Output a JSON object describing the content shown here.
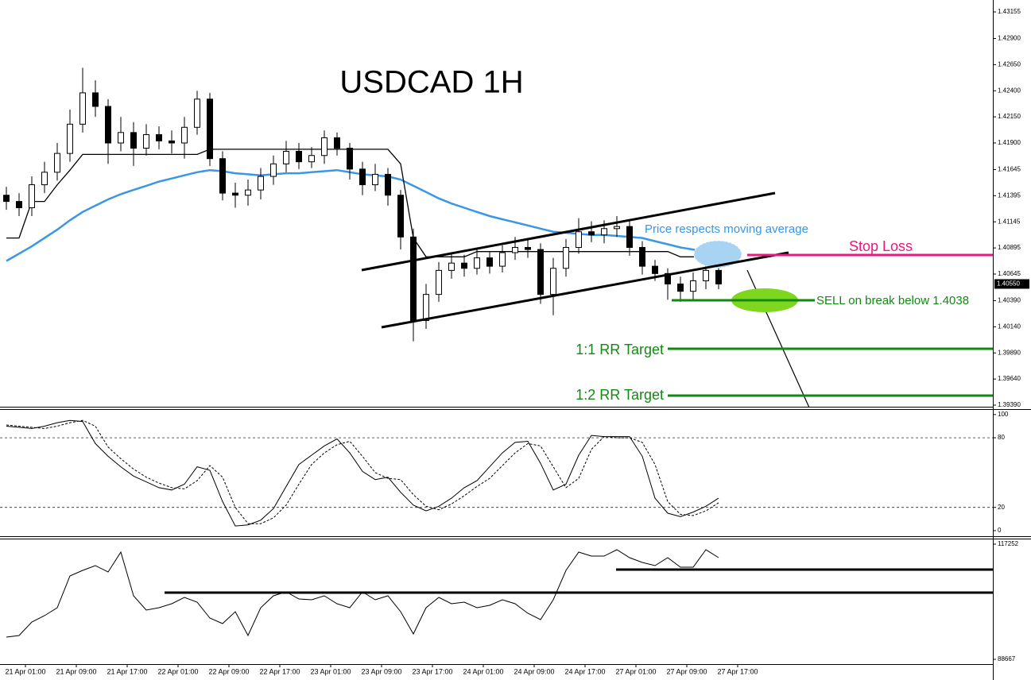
{
  "chart_data": [
    {
      "type": "candlestick",
      "title": "USDCAD 1H",
      "x_labels": [
        "21 Apr 01:00",
        "21 Apr 09:00",
        "21 Apr 17:00",
        "22 Apr 01:00",
        "22 Apr 09:00",
        "22 Apr 17:00",
        "23 Apr 01:00",
        "23 Apr 09:00",
        "23 Apr 17:00",
        "24 Apr 01:00",
        "24 Apr 09:00",
        "24 Apr 17:00",
        "27 Apr 01:00",
        "27 Apr 09:00",
        "27 Apr 17:00"
      ],
      "open": [
        1.414,
        1.4134,
        1.4128,
        1.415,
        1.4162,
        1.418,
        1.4208,
        1.4238,
        1.4225,
        1.419,
        1.42,
        1.4185,
        1.4198,
        1.4192,
        1.419,
        1.4205,
        1.4232,
        1.4175,
        1.4142,
        1.414,
        1.4145,
        1.4158,
        1.417,
        1.4182,
        1.4172,
        1.4178,
        1.4195,
        1.4185,
        1.4165,
        1.415,
        1.416,
        1.414,
        1.41,
        1.402,
        1.4045,
        1.4068,
        1.4075,
        1.407,
        1.408,
        1.4072,
        1.4085,
        1.409,
        1.4088,
        1.4045,
        1.407,
        1.409,
        1.4105,
        1.4102,
        1.4108,
        1.411,
        1.409,
        1.4072,
        1.4065,
        1.4055,
        1.4048,
        1.4058,
        1.4068
      ],
      "high": [
        1.4148,
        1.4142,
        1.4158,
        1.4172,
        1.419,
        1.4222,
        1.4262,
        1.425,
        1.4232,
        1.4215,
        1.421,
        1.4208,
        1.4206,
        1.4202,
        1.4215,
        1.424,
        1.4238,
        1.4182,
        1.4152,
        1.4155,
        1.4166,
        1.4178,
        1.4192,
        1.419,
        1.4186,
        1.4202,
        1.42,
        1.419,
        1.4172,
        1.417,
        1.4166,
        1.4145,
        1.4108,
        1.4055,
        1.4076,
        1.4085,
        1.4083,
        1.4088,
        1.4086,
        1.4092,
        1.41,
        1.4098,
        1.4094,
        1.408,
        1.4098,
        1.4118,
        1.4115,
        1.4116,
        1.412,
        1.4115,
        1.4096,
        1.4078,
        1.407,
        1.4062,
        1.4066,
        1.4076,
        1.4072
      ],
      "low": [
        1.4126,
        1.412,
        1.412,
        1.4142,
        1.4154,
        1.4172,
        1.42,
        1.4215,
        1.417,
        1.4182,
        1.4168,
        1.4178,
        1.4184,
        1.418,
        1.4175,
        1.4198,
        1.4168,
        1.4135,
        1.4128,
        1.413,
        1.4136,
        1.415,
        1.4162,
        1.4165,
        1.4166,
        1.417,
        1.4178,
        1.4155,
        1.414,
        1.4144,
        1.413,
        1.4088,
        1.4,
        1.4012,
        1.4038,
        1.406,
        1.4062,
        1.4064,
        1.4065,
        1.4066,
        1.4078,
        1.408,
        1.4036,
        1.4025,
        1.4062,
        1.4084,
        1.4095,
        1.4094,
        1.41,
        1.4082,
        1.4064,
        1.4058,
        1.404,
        1.4038,
        1.404,
        1.405,
        1.405
      ],
      "close": [
        1.4134,
        1.4128,
        1.415,
        1.4162,
        1.418,
        1.4208,
        1.4238,
        1.4225,
        1.419,
        1.42,
        1.4185,
        1.4198,
        1.4192,
        1.419,
        1.4205,
        1.4232,
        1.4175,
        1.4142,
        1.414,
        1.4145,
        1.4158,
        1.417,
        1.4182,
        1.4172,
        1.4178,
        1.4195,
        1.4185,
        1.4165,
        1.415,
        1.416,
        1.414,
        1.41,
        1.402,
        1.4045,
        1.4068,
        1.4075,
        1.407,
        1.408,
        1.4072,
        1.4085,
        1.409,
        1.4088,
        1.4045,
        1.407,
        1.409,
        1.4105,
        1.4102,
        1.4108,
        1.411,
        1.409,
        1.4072,
        1.4065,
        1.4055,
        1.4048,
        1.4058,
        1.4068,
        1.4055
      ],
      "series": [
        {
          "color": "#3a96e6",
          "values": [
            1.4077,
            1.4084,
            1.4091,
            1.4099,
            1.4107,
            1.4116,
            1.4124,
            1.413,
            1.4136,
            1.4141,
            1.4145,
            1.4149,
            1.4153,
            1.4156,
            1.4159,
            1.4162,
            1.4164,
            1.4163,
            1.4161,
            1.416,
            1.4159,
            1.416,
            1.4161,
            1.4161,
            1.4162,
            1.4163,
            1.4164,
            1.4162,
            1.416,
            1.4159,
            1.4158,
            1.4155,
            1.4149,
            1.4143,
            1.4137,
            1.4132,
            1.4128,
            1.4124,
            1.412,
            1.4117,
            1.4114,
            1.4111,
            1.4108,
            1.4105,
            1.4104,
            1.4103,
            1.4102,
            1.4102,
            1.4101,
            1.41,
            1.4099,
            1.4096,
            1.4093,
            1.409,
            1.4088,
            1.4086,
            1.4084
          ]
        },
        {
          "color": "#000000",
          "values": [
            1.4099,
            1.4099,
            1.4134,
            1.4134,
            1.415,
            1.4164,
            1.4179,
            1.4179,
            1.4179,
            1.4179,
            1.4179,
            1.4179,
            1.4179,
            1.4179,
            1.4179,
            1.4179,
            1.4184,
            1.4184,
            1.4184,
            1.4184,
            1.4184,
            1.4184,
            1.4184,
            1.4184,
            1.4184,
            1.4184,
            1.4184,
            1.4184,
            1.4184,
            1.4184,
            1.4184,
            1.417,
            1.4099,
            1.4081,
            1.4081,
            1.4081,
            1.4081,
            1.4086,
            1.4086,
            1.4086,
            1.4086,
            1.4086,
            1.4086,
            1.4086,
            1.4086,
            1.4086,
            1.4086,
            1.4086,
            1.4086,
            1.4086,
            1.4086,
            1.4086,
            1.4086,
            1.4081,
            1.4081,
            1.4081,
            1.4081
          ]
        }
      ],
      "ylim": [
        1.39367,
        1.43269
      ],
      "yticks": [
        1.43155,
        {
          "value": 1.429,
          "label": "1.42900"
        },
        {
          "value": 1.4265,
          "label": "1.42650"
        },
        {
          "value": 1.424,
          "label": "1.42400"
        },
        {
          "value": 1.4215,
          "label": "1.42150"
        },
        {
          "value": 1.419,
          "label": "1.41900"
        },
        1.41645,
        1.41395,
        1.41145,
        1.40895,
        1.40645,
        {
          "value": 1.4039,
          "label": "1.40390"
        },
        {
          "value": 1.4014,
          "label": "1.40140"
        },
        {
          "value": 1.3989,
          "label": "1.39890"
        },
        {
          "value": 1.3964,
          "label": "1.39640"
        },
        {
          "value": 1.3939,
          "label": "1.39390"
        }
      ],
      "current_price": {
        "value": 1.4055,
        "label": "1.40550"
      },
      "annotations": {
        "moving_average": "Price respects moving average",
        "stop_loss": "Stop Loss",
        "sell": "SELL on break below 1.4038",
        "target_1": "1:1 RR Target",
        "target_2": "1:2 RR Target"
      }
    },
    {
      "type": "line",
      "series": [
        {
          "color": "#000000",
          "values": [
            90,
            89,
            88,
            90,
            93,
            95,
            94,
            75,
            64,
            55,
            47,
            42,
            37,
            35,
            40,
            55,
            52,
            25,
            4,
            5,
            9,
            19,
            38,
            57,
            65,
            73,
            79,
            67,
            51,
            44,
            46,
            33,
            22,
            17,
            21,
            28,
            37,
            43,
            55,
            67,
            76,
            77,
            58,
            35,
            40,
            65,
            82,
            81,
            81,
            81,
            64,
            28,
            15,
            12,
            16,
            21,
            28
          ]
        },
        {
          "color": "#000000",
          "values": [
            91,
            90,
            89,
            88,
            90,
            93,
            95,
            90,
            72,
            62,
            53,
            46,
            41,
            37,
            36,
            43,
            56,
            46,
            20,
            6,
            6,
            11,
            22,
            40,
            57,
            67,
            74,
            77,
            64,
            50,
            45,
            44,
            31,
            21,
            18,
            23,
            30,
            38,
            45,
            56,
            67,
            75,
            73,
            55,
            37,
            45,
            70,
            81,
            80,
            80,
            76,
            57,
            25,
            14,
            13,
            17,
            24
          ]
        }
      ],
      "ylim": [
        -5.5,
        104
      ],
      "yticks": [
        100,
        80,
        20,
        0
      ],
      "levels": [
        80,
        20
      ]
    },
    {
      "type": "line",
      "series": [
        {
          "color": "#000000",
          "values": [
            94186,
            94580,
            97930,
            99510,
            101480,
            109360,
            110740,
            111920,
            110350,
            115280,
            104440,
            100890,
            101480,
            102460,
            104040,
            102860,
            98920,
            97540,
            100490,
            94580,
            101480,
            104440,
            105420,
            103650,
            103450,
            104440,
            102460,
            101480,
            105420,
            103450,
            104440,
            100490,
            94970,
            101480,
            104040,
            102460,
            102860,
            101480,
            102070,
            103450,
            102460,
            100100,
            98520,
            103450,
            110740,
            115280,
            114290,
            114290,
            115870,
            113900,
            112710,
            111920,
            113900,
            111530,
            111530,
            115870,
            113900
          ]
        }
      ],
      "ylim": [
        88667,
        117252
      ],
      "yticks": [
        117252,
        88667
      ]
    }
  ]
}
